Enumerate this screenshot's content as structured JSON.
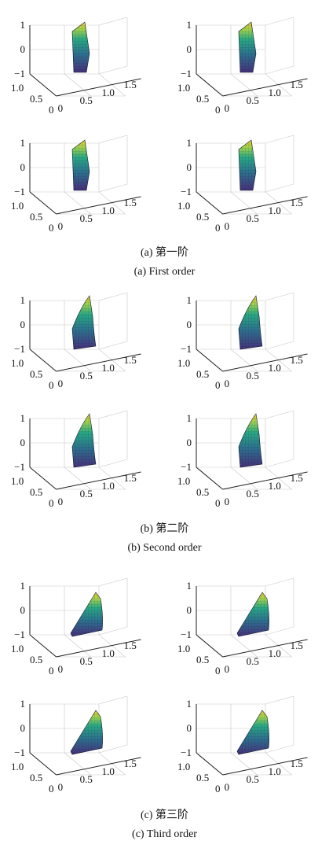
{
  "chart_data": {
    "type": "surface3d",
    "z_ticks": [
      "1",
      "0",
      "−1"
    ],
    "y_ticks": [
      "1.0",
      "0.5",
      "0"
    ],
    "x_ticks": [
      "0",
      "0.5",
      "1.0",
      "1.5"
    ],
    "zlim": [
      -1,
      1
    ],
    "ylim": [
      0,
      1.0
    ],
    "xlim": [
      0,
      1.5
    ],
    "grid": true
  },
  "captions": [
    {
      "cn": "(a) 第一阶",
      "en": "(a) First order"
    },
    {
      "cn": "(b) 第二阶",
      "en": "(b) Second order"
    },
    {
      "cn": "(c) 第三阶",
      "en": "(c) Third order"
    }
  ]
}
